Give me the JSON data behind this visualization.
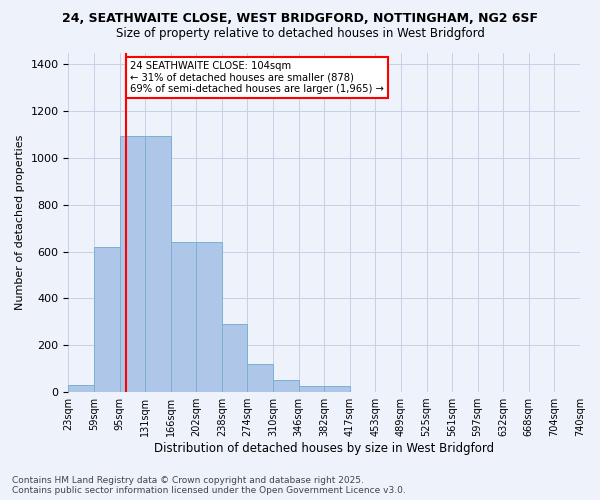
{
  "title_line1": "24, SEATHWAITE CLOSE, WEST BRIDGFORD, NOTTINGHAM, NG2 6SF",
  "title_line2": "Size of property relative to detached houses in West Bridgford",
  "xlabel": "Distribution of detached houses by size in West Bridgford",
  "ylabel": "Number of detached properties",
  "tick_labels": [
    "23sqm",
    "59sqm",
    "95sqm",
    "131sqm",
    "166sqm",
    "202sqm",
    "238sqm",
    "274sqm",
    "310sqm",
    "346sqm",
    "382sqm",
    "417sqm",
    "453sqm",
    "489sqm",
    "525sqm",
    "561sqm",
    "597sqm",
    "632sqm",
    "668sqm",
    "704sqm",
    "740sqm"
  ],
  "values": [
    30,
    620,
    1095,
    1095,
    640,
    640,
    290,
    120,
    50,
    25,
    25,
    0,
    0,
    0,
    0,
    0,
    0,
    0,
    0,
    0
  ],
  "bar_color": "#aec6e8",
  "bar_edge_color": "#7ab0d4",
  "bg_color": "#eef2fb",
  "grid_color": "#c8d0e8",
  "vline_color": "red",
  "annotation_text": "24 SEATHWAITE CLOSE: 104sqm\n← 31% of detached houses are smaller (878)\n69% of semi-detached houses are larger (1,965) →",
  "annotation_box_color": "white",
  "annotation_box_edge": "red",
  "ylim": [
    0,
    1450
  ],
  "yticks": [
    0,
    200,
    400,
    600,
    800,
    1000,
    1200,
    1400
  ],
  "footer_line1": "Contains HM Land Registry data © Crown copyright and database right 2025.",
  "footer_line2": "Contains public sector information licensed under the Open Government Licence v3.0."
}
